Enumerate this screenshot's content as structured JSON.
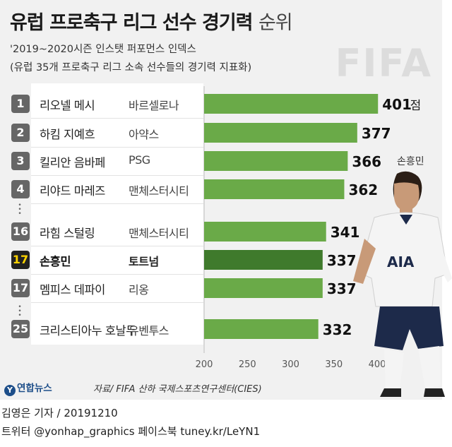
{
  "title": {
    "main": "유럽 프로축구 리그 선수 경기력",
    "suffix": "순위"
  },
  "subtitle_1": "'2019~2020시즌 인스탯 퍼포먼스 인덱스",
  "subtitle_2": "(유럽 35개 프로축구 리그 소속 선수들의 경기력 지표화)",
  "watermark": "FIFA",
  "player_label": "손흥민",
  "source": "자료/ FIFA 산하 국제스포츠연구센터(CIES)",
  "logo_text": "연합뉴스",
  "byline_1": "김영은 기자 / 20191210",
  "byline_2": "트위터 @yonhap_graphics  페이스북 tuney.kr/LeYN1",
  "chart_data": {
    "type": "bar",
    "orientation": "horizontal",
    "x_ticks": [
      "200",
      "250",
      "300",
      "350",
      "400"
    ],
    "xlim": [
      200,
      400
    ],
    "value_unit": "점",
    "colors": {
      "bar": "#6aaa48",
      "bar_highlight": "#3f7a2c"
    },
    "rows": [
      {
        "rank": "1",
        "name": "리오넬 메시",
        "club": "바르셀로나",
        "value": 401,
        "label": "401",
        "unit": "점",
        "highlight": false
      },
      {
        "rank": "2",
        "name": "하킴 지예흐",
        "club": "아약스",
        "value": 377,
        "label": "377",
        "unit": "",
        "highlight": false
      },
      {
        "rank": "3",
        "name": "킬리안 음바페",
        "club": "PSG",
        "value": 366,
        "label": "366",
        "unit": "",
        "highlight": false
      },
      {
        "rank": "4",
        "name": "리야드 마레즈",
        "club": "맨체스터시티",
        "value": 362,
        "label": "362",
        "unit": "",
        "highlight": false
      },
      {
        "rank": "16",
        "name": "라힘 스털링",
        "club": "맨체스터시티",
        "value": 341,
        "label": "341",
        "unit": "",
        "highlight": false
      },
      {
        "rank": "17",
        "name": "손흥민",
        "club": "토트넘",
        "value": 337,
        "label": "337",
        "unit": "",
        "highlight": true
      },
      {
        "rank": "17",
        "name": "멤피스 데파이",
        "club": "리옹",
        "value": 337,
        "label": "337",
        "unit": "",
        "highlight": false
      },
      {
        "rank": "25",
        "name": "크리스티아누 호날두",
        "club": "유벤투스",
        "value": 332,
        "label": "332",
        "unit": "",
        "highlight": false
      }
    ]
  }
}
